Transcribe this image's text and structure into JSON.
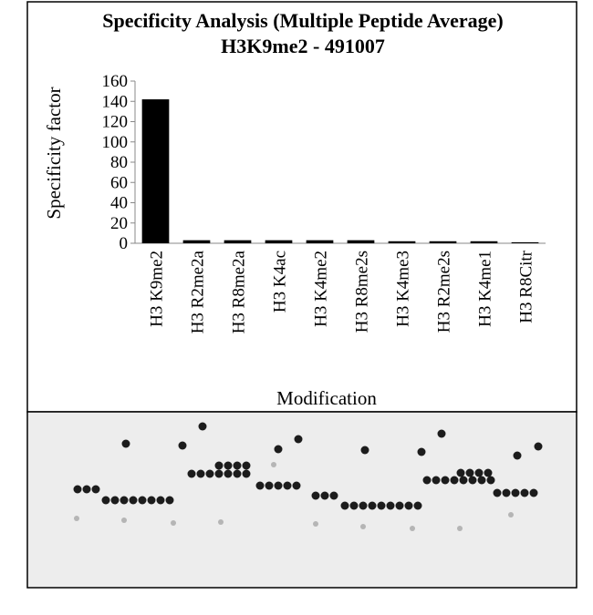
{
  "chart_data": {
    "type": "bar",
    "title": "Specificity Analysis  (Multiple Peptide Average)",
    "subtitle": "H3K9me2 - 491007",
    "x_label": "Modification",
    "y_label": "Specificity factor",
    "categories": [
      "H3 K9me2",
      "H3 R2me2a",
      "H3 R8me2a",
      "H3 K4ac",
      "H3 K4me2",
      "H3 R8me2s",
      "H3 K4me3",
      "H3 R2me2s",
      "H3 K4me1",
      "H3 R8Citr"
    ],
    "values": [
      142,
      3,
      3,
      3,
      3,
      3,
      2,
      2,
      2,
      1
    ],
    "color": "#000000",
    "ylim": [
      0,
      160
    ],
    "yticks": [
      0,
      20,
      40,
      60,
      80,
      100,
      120,
      140,
      160
    ]
  }
}
